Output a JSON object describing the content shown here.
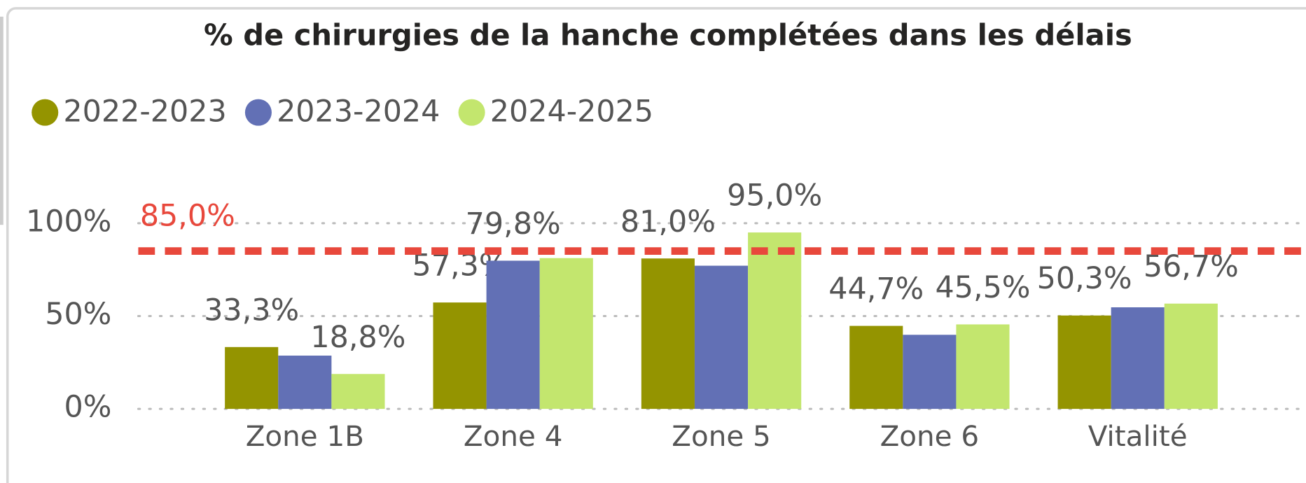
{
  "chart_data": {
    "type": "bar",
    "title": "% de chirurgies de la hanche complétées dans les délais",
    "categories": [
      "Zone 1B",
      "Zone 4",
      "Zone 5",
      "Zone 6",
      "Vitalité"
    ],
    "series": [
      {
        "name": "2022-2023",
        "color": "#949400",
        "values": [
          33.3,
          57.3,
          81.0,
          44.7,
          50.3
        ],
        "value_labels": [
          "33,3%",
          "57,3%",
          "81,0%",
          "44,7%",
          "50,3%"
        ]
      },
      {
        "name": "2023-2024",
        "color": "#6270b5",
        "values": [
          28.7,
          79.8,
          77.1,
          39.9,
          54.7
        ],
        "value_labels": [
          null,
          "79,8%",
          null,
          null,
          null
        ]
      },
      {
        "name": "2024-2025",
        "color": "#c3e66e",
        "values": [
          18.8,
          81.2,
          95.0,
          45.5,
          56.7
        ],
        "value_labels": [
          "18,8%",
          null,
          "95,0%",
          "45,5%",
          "56,7%"
        ]
      }
    ],
    "target": {
      "value": 85.0,
      "label": "85,0%",
      "color": "#e8483c"
    },
    "ylim": [
      0,
      100
    ],
    "yticks": [
      {
        "value": 0,
        "label": "0%"
      },
      {
        "value": 50,
        "label": "50%"
      },
      {
        "value": 100,
        "label": "100%"
      }
    ],
    "grid": true,
    "legend": "top-left"
  }
}
